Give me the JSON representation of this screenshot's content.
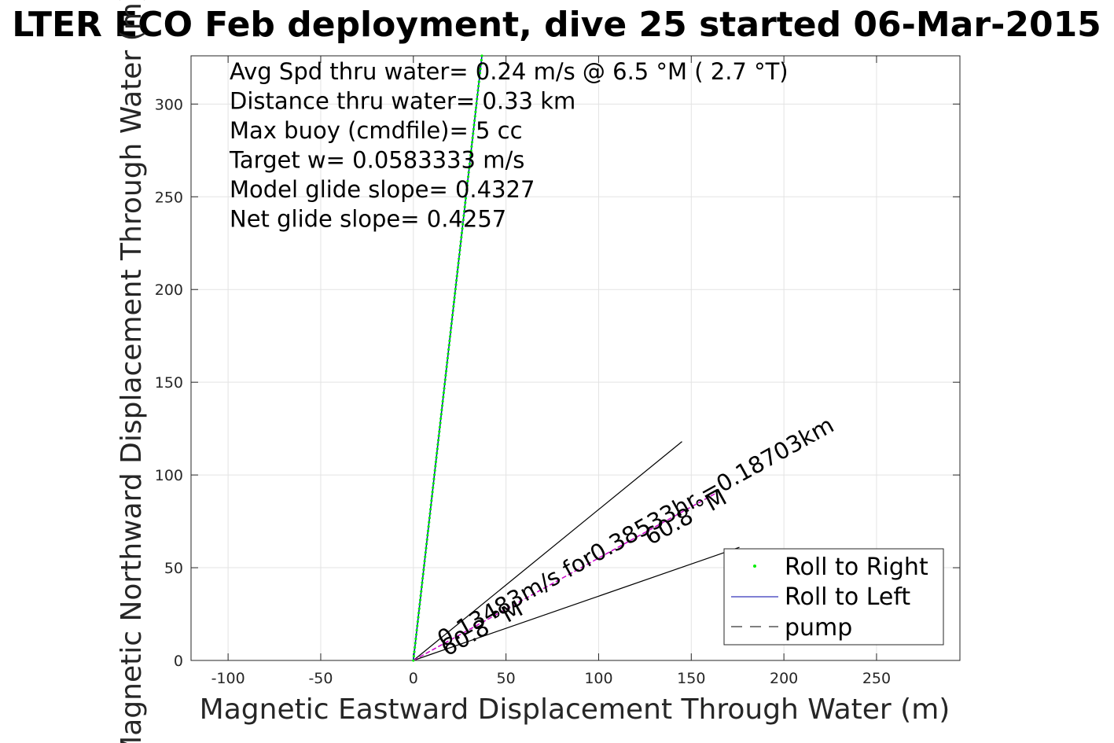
{
  "chart_data": {
    "type": "line",
    "title": "LTER ECO Feb deployment, dive 25 started 06-Mar-2015",
    "xlabel": "Magnetic Eastward Displacement Through Water (m)",
    "ylabel": "Magnetic Northward Displacement Through Water (m)",
    "xlim": [
      -120,
      295
    ],
    "ylim": [
      0,
      326
    ],
    "xticks": [
      -100,
      -50,
      0,
      50,
      100,
      150,
      200,
      250
    ],
    "yticks": [
      0,
      50,
      100,
      150,
      200,
      250,
      300
    ],
    "grid": true,
    "stats": [
      "Avg Spd thru water=  0.24 m/s @   6.5 °M (  2.7 °T)",
      "Distance thru water=  0.33 km",
      "Max buoy (cmdfile)= 5 cc",
      "Target w= 0.0583333 m/s",
      "Model glide slope= 0.4327",
      "Net glide slope= 0.4257"
    ],
    "series": [
      {
        "name": "Roll to Right",
        "style": "dots",
        "color": "#00ee00",
        "x": [
          0,
          37
        ],
        "y": [
          0,
          326
        ]
      },
      {
        "name": "Roll to Left",
        "style": "line",
        "color": "#0000aa",
        "x": [
          0,
          37
        ],
        "y": [
          0,
          326
        ]
      },
      {
        "name": "pump",
        "style": "dashed",
        "color": "#000000",
        "x": [],
        "y": []
      }
    ],
    "current_line": {
      "color": "#cc00cc",
      "x": [
        0,
        163
      ],
      "y": [
        0,
        90
      ]
    },
    "wedge_lines": [
      {
        "x": [
          0,
          145
        ],
        "y": [
          0,
          118
        ]
      },
      {
        "x": [
          0,
          176
        ],
        "y": [
          0,
          61
        ]
      }
    ],
    "annotations": [
      {
        "text": "0.13483m/s for0.38533hr =0.18703km",
        "x": 16,
        "y": 7,
        "angle": 29
      },
      {
        "text": "60.8 °M",
        "x": 18,
        "y": 2,
        "angle": 29
      },
      {
        "text": "60.8 °M",
        "x": 128,
        "y": 62,
        "angle": 29
      }
    ],
    "legend_position": "bottom-right"
  }
}
